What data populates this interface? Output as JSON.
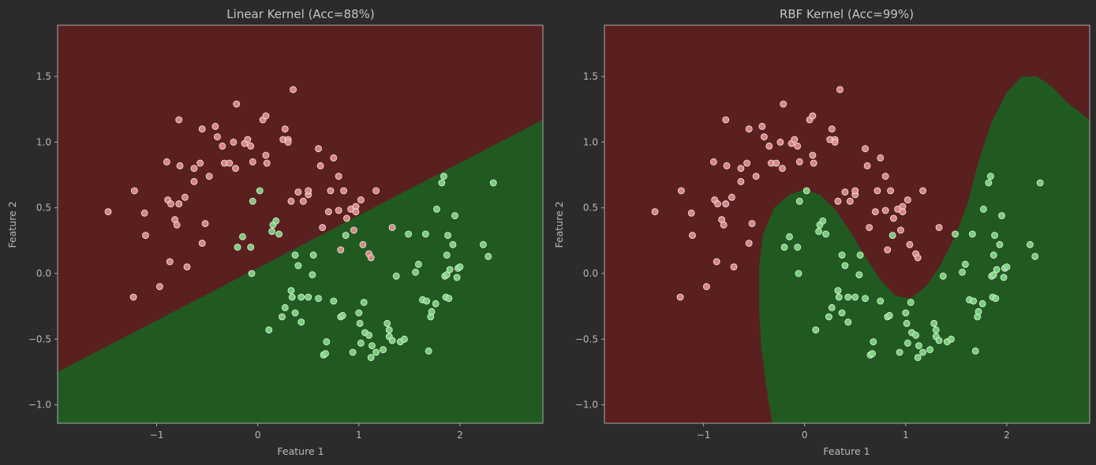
{
  "colors": {
    "background": "#2b2b2b",
    "class0_region": "#5a2020",
    "class1_region": "#215a21",
    "class0_point": "#e88e8e",
    "class1_point": "#7edc7e",
    "point_edge": "#eeeeee",
    "spine": "#aaaaaa",
    "text": "#b8b8b8"
  },
  "chart_data": [
    {
      "type": "scatter",
      "title": "Linear Kernel (Acc=88%)",
      "xlabel": "Feature 1",
      "ylabel": "Feature 2",
      "xlim": [
        -1.98,
        2.82
      ],
      "ylim": [
        -1.14,
        1.89
      ],
      "xticks": [
        -1,
        0,
        1,
        2
      ],
      "yticks": [
        -1.0,
        -0.5,
        0.0,
        0.5,
        1.0,
        1.5
      ],
      "grid": false,
      "decision_boundary": {
        "kind": "line",
        "points": [
          [
            -1.98,
            -0.75
          ],
          [
            2.82,
            1.17
          ]
        ]
      }
    },
    {
      "type": "scatter",
      "title": "RBF Kernel (Acc=99%)",
      "xlabel": "Feature 1",
      "ylabel": "Feature 2",
      "xlim": [
        -1.98,
        2.82
      ],
      "ylim": [
        -1.14,
        1.89
      ],
      "xticks": [
        -1,
        0,
        1,
        2
      ],
      "yticks": [
        -1.0,
        -0.5,
        0.0,
        0.5,
        1.0,
        1.5
      ],
      "grid": false,
      "decision_boundary": {
        "kind": "curve",
        "points": [
          [
            -0.32,
            -1.14
          ],
          [
            -0.38,
            -0.85
          ],
          [
            -0.43,
            -0.55
          ],
          [
            -0.45,
            -0.25
          ],
          [
            -0.45,
            0.05
          ],
          [
            -0.41,
            0.3
          ],
          [
            -0.3,
            0.5
          ],
          [
            -0.15,
            0.6
          ],
          [
            0.0,
            0.64
          ],
          [
            0.15,
            0.6
          ],
          [
            0.3,
            0.49
          ],
          [
            0.45,
            0.32
          ],
          [
            0.6,
            0.13
          ],
          [
            0.75,
            -0.05
          ],
          [
            0.9,
            -0.17
          ],
          [
            1.05,
            -0.19
          ],
          [
            1.2,
            -0.1
          ],
          [
            1.35,
            0.07
          ],
          [
            1.5,
            0.3
          ],
          [
            1.62,
            0.55
          ],
          [
            1.72,
            0.85
          ],
          [
            1.85,
            1.15
          ],
          [
            2.0,
            1.38
          ],
          [
            2.15,
            1.5
          ],
          [
            2.3,
            1.5
          ],
          [
            2.45,
            1.42
          ],
          [
            2.6,
            1.3
          ],
          [
            2.82,
            1.17
          ]
        ]
      }
    }
  ],
  "points": {
    "class0": [
      [
        -1.48,
        0.47
      ],
      [
        -1.22,
        0.63
      ],
      [
        -1.12,
        0.46
      ],
      [
        -1.11,
        0.29
      ],
      [
        -1.23,
        -0.18
      ],
      [
        -0.97,
        -0.1
      ],
      [
        -0.9,
        0.85
      ],
      [
        -0.89,
        0.56
      ],
      [
        -0.86,
        0.53
      ],
      [
        -0.82,
        0.41
      ],
      [
        -0.8,
        0.37
      ],
      [
        -0.87,
        0.09
      ],
      [
        -0.78,
        1.17
      ],
      [
        -0.77,
        0.82
      ],
      [
        -0.78,
        0.53
      ],
      [
        -0.72,
        0.58
      ],
      [
        -0.7,
        0.05
      ],
      [
        -0.63,
        0.7
      ],
      [
        -0.63,
        0.8
      ],
      [
        -0.57,
        0.84
      ],
      [
        -0.55,
        1.1
      ],
      [
        -0.55,
        0.23
      ],
      [
        -0.52,
        0.38
      ],
      [
        -0.48,
        0.74
      ],
      [
        -0.42,
        1.12
      ],
      [
        -0.4,
        1.04
      ],
      [
        -0.35,
        0.97
      ],
      [
        -0.33,
        0.84
      ],
      [
        -0.28,
        0.84
      ],
      [
        -0.24,
        1.0
      ],
      [
        -0.22,
        0.8
      ],
      [
        -0.21,
        1.29
      ],
      [
        -0.13,
        0.99
      ],
      [
        -0.1,
        1.02
      ],
      [
        -0.07,
        0.97
      ],
      [
        -0.05,
        0.85
      ],
      [
        0.05,
        1.17
      ],
      [
        0.08,
        1.2
      ],
      [
        0.08,
        0.9
      ],
      [
        0.09,
        0.84
      ],
      [
        0.25,
        1.02
      ],
      [
        0.27,
        1.1
      ],
      [
        0.3,
        1.02
      ],
      [
        0.3,
        1.0
      ],
      [
        0.35,
        1.4
      ],
      [
        0.33,
        0.55
      ],
      [
        0.4,
        0.62
      ],
      [
        0.45,
        0.55
      ],
      [
        0.5,
        0.6
      ],
      [
        0.5,
        0.63
      ],
      [
        0.6,
        0.95
      ],
      [
        0.62,
        0.82
      ],
      [
        0.64,
        0.35
      ],
      [
        0.7,
        0.47
      ],
      [
        0.72,
        0.63
      ],
      [
        0.75,
        0.88
      ],
      [
        0.8,
        0.74
      ],
      [
        0.8,
        0.48
      ],
      [
        0.82,
        0.18
      ],
      [
        0.85,
        0.63
      ],
      [
        0.88,
        0.42
      ],
      [
        0.92,
        0.49
      ],
      [
        0.95,
        0.33
      ],
      [
        0.97,
        0.51
      ],
      [
        0.97,
        0.47
      ],
      [
        1.02,
        0.56
      ],
      [
        1.04,
        0.22
      ],
      [
        1.1,
        0.15
      ],
      [
        1.12,
        0.12
      ],
      [
        1.17,
        0.63
      ],
      [
        1.33,
        0.35
      ]
    ],
    "class1": [
      [
        -0.2,
        0.2
      ],
      [
        -0.15,
        0.28
      ],
      [
        -0.05,
        0.55
      ],
      [
        -0.07,
        0.2
      ],
      [
        -0.06,
        0.0
      ],
      [
        0.02,
        0.63
      ],
      [
        0.14,
        0.32
      ],
      [
        0.15,
        0.37
      ],
      [
        0.18,
        0.4
      ],
      [
        0.21,
        0.3
      ],
      [
        0.11,
        -0.43
      ],
      [
        0.24,
        -0.33
      ],
      [
        0.27,
        -0.26
      ],
      [
        0.33,
        -0.13
      ],
      [
        0.34,
        -0.18
      ],
      [
        0.37,
        0.14
      ],
      [
        0.37,
        -0.3
      ],
      [
        0.4,
        0.06
      ],
      [
        0.43,
        -0.18
      ],
      [
        0.43,
        -0.37
      ],
      [
        0.5,
        -0.18
      ],
      [
        0.54,
        -0.01
      ],
      [
        0.55,
        0.14
      ],
      [
        0.6,
        -0.19
      ],
      [
        0.65,
        -0.62
      ],
      [
        0.67,
        -0.61
      ],
      [
        0.68,
        -0.52
      ],
      [
        0.75,
        -0.21
      ],
      [
        0.82,
        -0.33
      ],
      [
        0.84,
        -0.32
      ],
      [
        0.87,
        0.29
      ],
      [
        0.94,
        -0.6
      ],
      [
        1.0,
        -0.3
      ],
      [
        1.01,
        -0.38
      ],
      [
        1.02,
        -0.53
      ],
      [
        1.05,
        -0.22
      ],
      [
        1.06,
        -0.45
      ],
      [
        1.1,
        -0.47
      ],
      [
        1.12,
        -0.64
      ],
      [
        1.13,
        -0.55
      ],
      [
        1.17,
        -0.6
      ],
      [
        1.24,
        -0.58
      ],
      [
        1.28,
        -0.38
      ],
      [
        1.3,
        -0.43
      ],
      [
        1.3,
        -0.48
      ],
      [
        1.33,
        -0.51
      ],
      [
        1.37,
        -0.02
      ],
      [
        1.41,
        -0.52
      ],
      [
        1.45,
        -0.5
      ],
      [
        1.49,
        0.3
      ],
      [
        1.56,
        0.01
      ],
      [
        1.59,
        0.07
      ],
      [
        1.63,
        -0.2
      ],
      [
        1.66,
        0.3
      ],
      [
        1.67,
        -0.21
      ],
      [
        1.69,
        -0.59
      ],
      [
        1.71,
        -0.33
      ],
      [
        1.72,
        -0.29
      ],
      [
        1.76,
        -0.23
      ],
      [
        1.77,
        0.49
      ],
      [
        1.82,
        0.69
      ],
      [
        1.84,
        0.74
      ],
      [
        1.85,
        -0.02
      ],
      [
        1.86,
        -0.18
      ],
      [
        1.87,
        0.14
      ],
      [
        1.87,
        -0.01
      ],
      [
        1.88,
        0.29
      ],
      [
        1.89,
        -0.19
      ],
      [
        1.9,
        0.03
      ],
      [
        1.93,
        0.22
      ],
      [
        1.95,
        0.44
      ],
      [
        1.97,
        -0.03
      ],
      [
        1.98,
        0.04
      ],
      [
        2.0,
        0.05
      ],
      [
        2.23,
        0.22
      ],
      [
        2.28,
        0.13
      ],
      [
        2.33,
        0.69
      ]
    ]
  }
}
